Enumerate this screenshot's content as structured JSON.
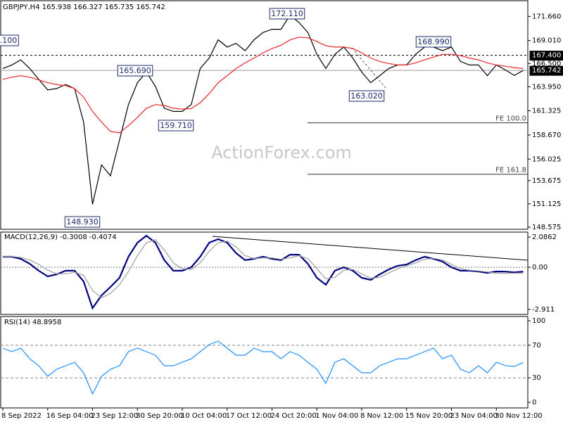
{
  "chart_data": [
    {
      "type": "line",
      "title": "GBPJPY,H4  165.938 166.327 165.735 165.742",
      "categories": [
        "8 Sep 2022",
        null,
        null,
        null,
        null,
        "16 Sep 04:00",
        null,
        null,
        null,
        null,
        "23 Sep 12:00",
        null,
        null,
        null,
        null,
        "30 Sep 20:00",
        null,
        null,
        null,
        null,
        "10 Oct 04:00",
        null,
        null,
        null,
        null,
        "17 Oct 12:00",
        null,
        null,
        null,
        null,
        "24 Oct 20:00",
        null,
        null,
        null,
        null,
        "1 Nov 04:00",
        null,
        null,
        null,
        null,
        "8 Nov 12:00",
        null,
        null,
        null,
        null,
        "15 Nov 20:00",
        null,
        null,
        null,
        null,
        "23 Nov 04:00",
        null,
        null,
        null,
        null,
        "30 Nov 12:00",
        null,
        null,
        null
      ],
      "series": [
        {
          "color": "#000000",
          "values": [
            165.95,
            166.34,
            166.9,
            165.95,
            164.77,
            163.6,
            163.76,
            164.2,
            163.76,
            160.08,
            151.08,
            155.4,
            154.2,
            158.1,
            162.0,
            164.4,
            165.56,
            164.0,
            161.6,
            161.25,
            161.25,
            162.0,
            165.95,
            167.1,
            169.1,
            168.3,
            168.7,
            167.9,
            169.1,
            169.9,
            170.25,
            170.25,
            171.8,
            171.0,
            169.9,
            167.5,
            165.95,
            167.5,
            168.3,
            167.1,
            165.56,
            164.4,
            165.17,
            165.95,
            166.34,
            166.34,
            167.5,
            168.3,
            168.3,
            167.9,
            168.3,
            166.73,
            166.34,
            166.34,
            165.17,
            166.34,
            165.8,
            165.2,
            165.742
          ]
        },
        {
          "color": "#e8262b",
          "values": [
            164.77,
            165.0,
            165.17,
            165.0,
            164.7,
            164.4,
            164.2,
            164.07,
            163.76,
            162.82,
            161.25,
            160.08,
            159.06,
            158.9,
            159.69,
            160.6,
            161.6,
            162.0,
            161.9,
            161.6,
            161.5,
            161.57,
            162.2,
            163.2,
            164.4,
            165.17,
            165.95,
            166.57,
            167.1,
            167.67,
            168.14,
            168.5,
            169.08,
            169.39,
            169.31,
            168.9,
            168.45,
            168.3,
            168.3,
            168.14,
            167.67,
            167.1,
            166.73,
            166.5,
            166.34,
            166.34,
            166.57,
            166.9,
            167.2,
            167.5,
            167.5,
            167.36,
            167.1,
            166.9,
            166.57,
            166.34,
            166.2,
            166.05,
            165.95
          ]
        }
      ],
      "ylim": [
        148.34,
        173.38
      ],
      "yticks": [
        {
          "value": 171.66,
          "label": "171.660"
        },
        {
          "value": 169.01,
          "label": "169.010"
        },
        {
          "value": 166.5,
          "label": "166.500"
        },
        {
          "value": 163.95,
          "label": "163.950"
        },
        161.325,
        {
          "value": 158.67,
          "label": "158.670"
        },
        156.025,
        153.675,
        151.125,
        148.575
      ],
      "levels": [
        {
          "value": 167.4,
          "label": "167.400",
          "color": "#000000"
        },
        {
          "value": 165.742,
          "label": "165.742",
          "color": "#9a9a9a"
        }
      ],
      "fe_lines": [
        {
          "name": "FE 100.0",
          "value": 160.0
        },
        {
          "name": "FE 161.8",
          "value": 154.37
        }
      ],
      "annotations": [
        "172.110",
        "165.690",
        "159.710",
        "148.930",
        "163.020",
        "168.990",
        ".100"
      ],
      "watermark": "ActionForex.com"
    },
    {
      "type": "line",
      "title": "MACD(12,26,9) -0.3008 -0.4074",
      "series": [
        {
          "color": "#000080",
          "values": [
            0.73,
            0.73,
            0.58,
            0.24,
            -0.24,
            -0.63,
            -0.49,
            -0.24,
            -0.24,
            -0.97,
            -2.82,
            -1.94,
            -1.36,
            -0.73,
            0.73,
            1.7,
            2.18,
            1.7,
            0.49,
            -0.24,
            -0.24,
            0,
            0.73,
            1.7,
            1.94,
            1.7,
            0.97,
            0.49,
            0.58,
            0.73,
            0.58,
            0.49,
            0.87,
            0.87,
            0.24,
            -0.73,
            -1.21,
            -0.24,
            0,
            -0.24,
            -0.73,
            -0.87,
            -0.49,
            -0.15,
            0.1,
            0.19,
            0.49,
            0.73,
            0.58,
            0.39,
            0,
            -0.24,
            -0.24,
            -0.29,
            -0.39,
            -0.29,
            -0.3,
            -0.35,
            -0.3008
          ]
        },
        {
          "color": "#a0a0a0",
          "values": [
            0.75,
            0.74,
            0.68,
            0.5,
            0.2,
            -0.2,
            -0.45,
            -0.45,
            -0.35,
            -0.55,
            -1.6,
            -2.1,
            -1.8,
            -1.2,
            -0.3,
            0.8,
            1.7,
            1.9,
            1.2,
            0.3,
            -0.1,
            -0.15,
            0.3,
            1.1,
            1.7,
            1.8,
            1.4,
            0.8,
            0.6,
            0.65,
            0.65,
            0.55,
            0.65,
            0.8,
            0.6,
            -0.1,
            -0.8,
            -0.7,
            -0.2,
            -0.15,
            -0.45,
            -0.75,
            -0.7,
            -0.4,
            -0.1,
            0.1,
            0.3,
            0.55,
            0.62,
            0.5,
            0.2,
            -0.1,
            -0.2,
            -0.25,
            -0.32,
            -0.41,
            -0.42,
            -0.41,
            -0.4074
          ]
        }
      ],
      "ylim": [
        -3.251,
        2.426
      ],
      "yticks": [
        2.0862,
        {
          "value": 0,
          "label": "0.00"
        },
        -2.911
      ]
    },
    {
      "type": "line",
      "title": "RSI(14) 48.8958",
      "series": [
        {
          "color": "#1e90ff",
          "values": [
            66.4,
            62.1,
            66.4,
            53.4,
            44.8,
            31.9,
            40.5,
            44.8,
            49.1,
            36.2,
            10.3,
            31.9,
            40.5,
            44.8,
            62.1,
            66.4,
            62.1,
            57.8,
            44.8,
            44.8,
            49.1,
            53.4,
            62.1,
            70.7,
            75.0,
            66.4,
            57.8,
            57.8,
            66.4,
            62.1,
            62.1,
            53.4,
            62.1,
            57.8,
            49.1,
            40.5,
            23.3,
            49.1,
            53.4,
            44.8,
            36.2,
            36.2,
            44.8,
            49.1,
            53.4,
            53.4,
            57.8,
            62.1,
            66.4,
            53.4,
            57.8,
            40.5,
            36.2,
            44.8,
            36.2,
            49.1,
            45.0,
            44.0,
            48.8958
          ]
        }
      ],
      "ylim": [
        -6.9,
        105.2
      ],
      "yticks": [
        100,
        70,
        30,
        0
      ],
      "levels": [
        70,
        30
      ]
    }
  ]
}
